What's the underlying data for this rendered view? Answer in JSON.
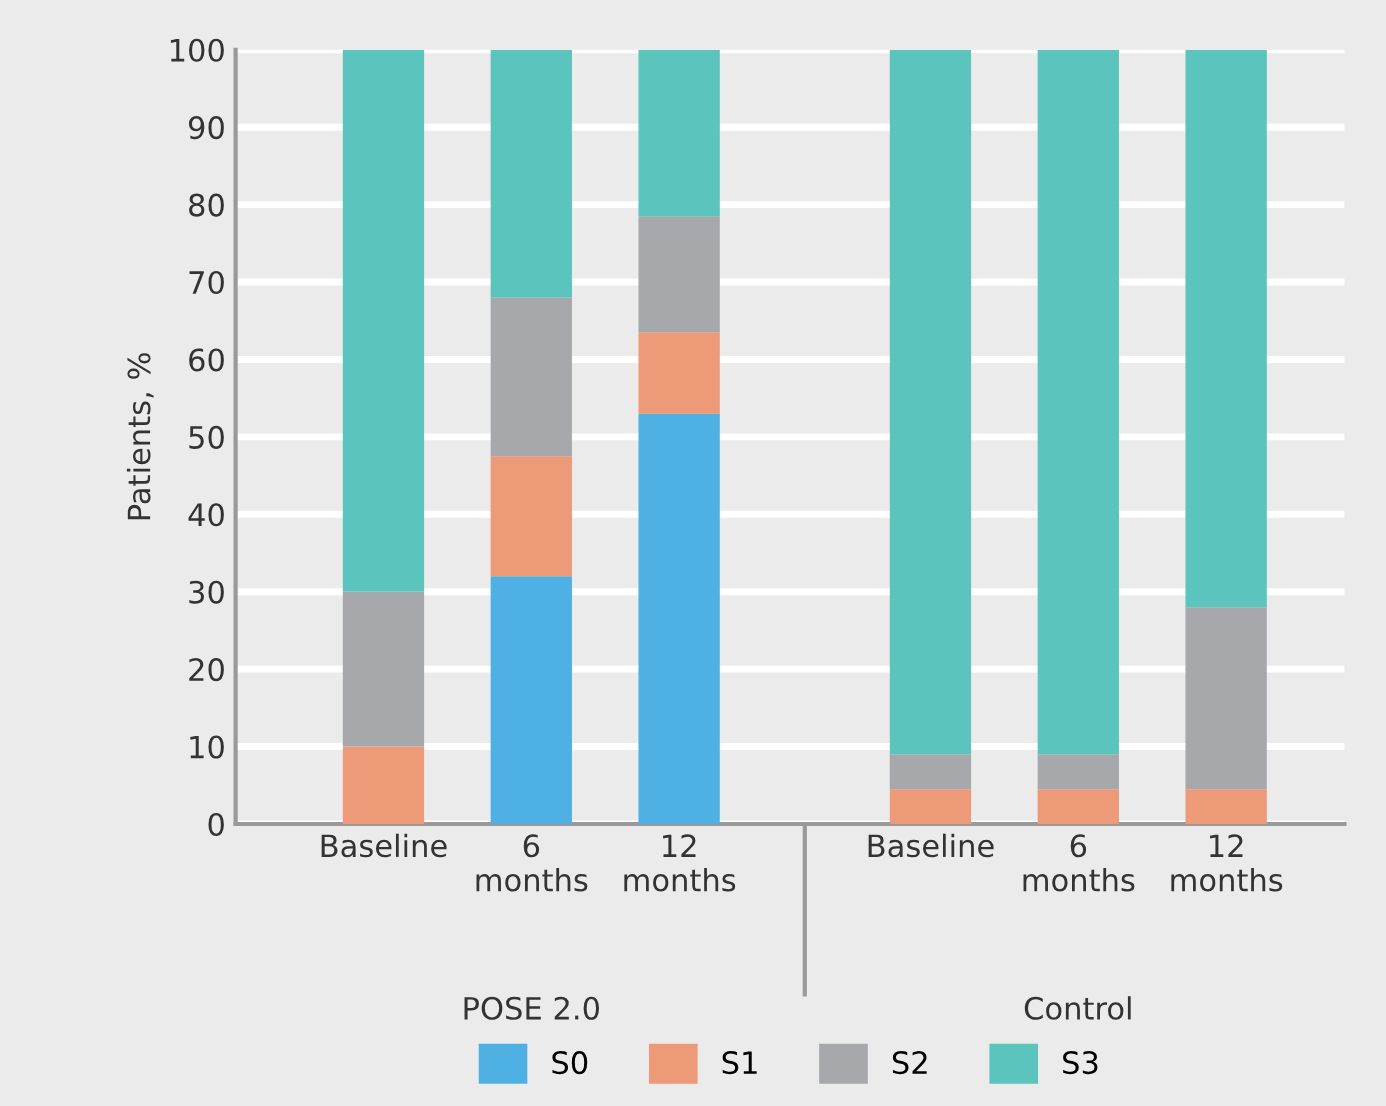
{
  "chart_data": {
    "type": "bar",
    "stacked": true,
    "ylabel": "Patients, %",
    "categories": [
      "Baseline",
      "6\nmonths",
      "12\nmonths",
      "Baseline",
      "6\nmonths",
      "12\nmonths"
    ],
    "annotations": [
      "POSE 2.0",
      "Control"
    ],
    "series": [
      {
        "name": "S0",
        "color": "#4fb0e3",
        "values": [
          0,
          32,
          53,
          0,
          0,
          0
        ]
      },
      {
        "name": "S1",
        "color": "#ec9a78",
        "values": [
          10,
          15.5,
          10.5,
          4.5,
          4.5,
          4.5
        ]
      },
      {
        "name": "S2",
        "color": "#a7a8ab",
        "values": [
          20,
          20.5,
          15,
          4.5,
          4.5,
          23.5
        ]
      },
      {
        "name": "S3",
        "color": "#5bc4bc",
        "values": [
          70,
          32,
          21.5,
          91,
          91,
          72
        ]
      }
    ],
    "ylim": [
      0,
      100
    ],
    "yticks": [
      0,
      10,
      20,
      30,
      40,
      50,
      60,
      70,
      80,
      90,
      100
    ],
    "grid": "y",
    "legend": "bottom"
  }
}
